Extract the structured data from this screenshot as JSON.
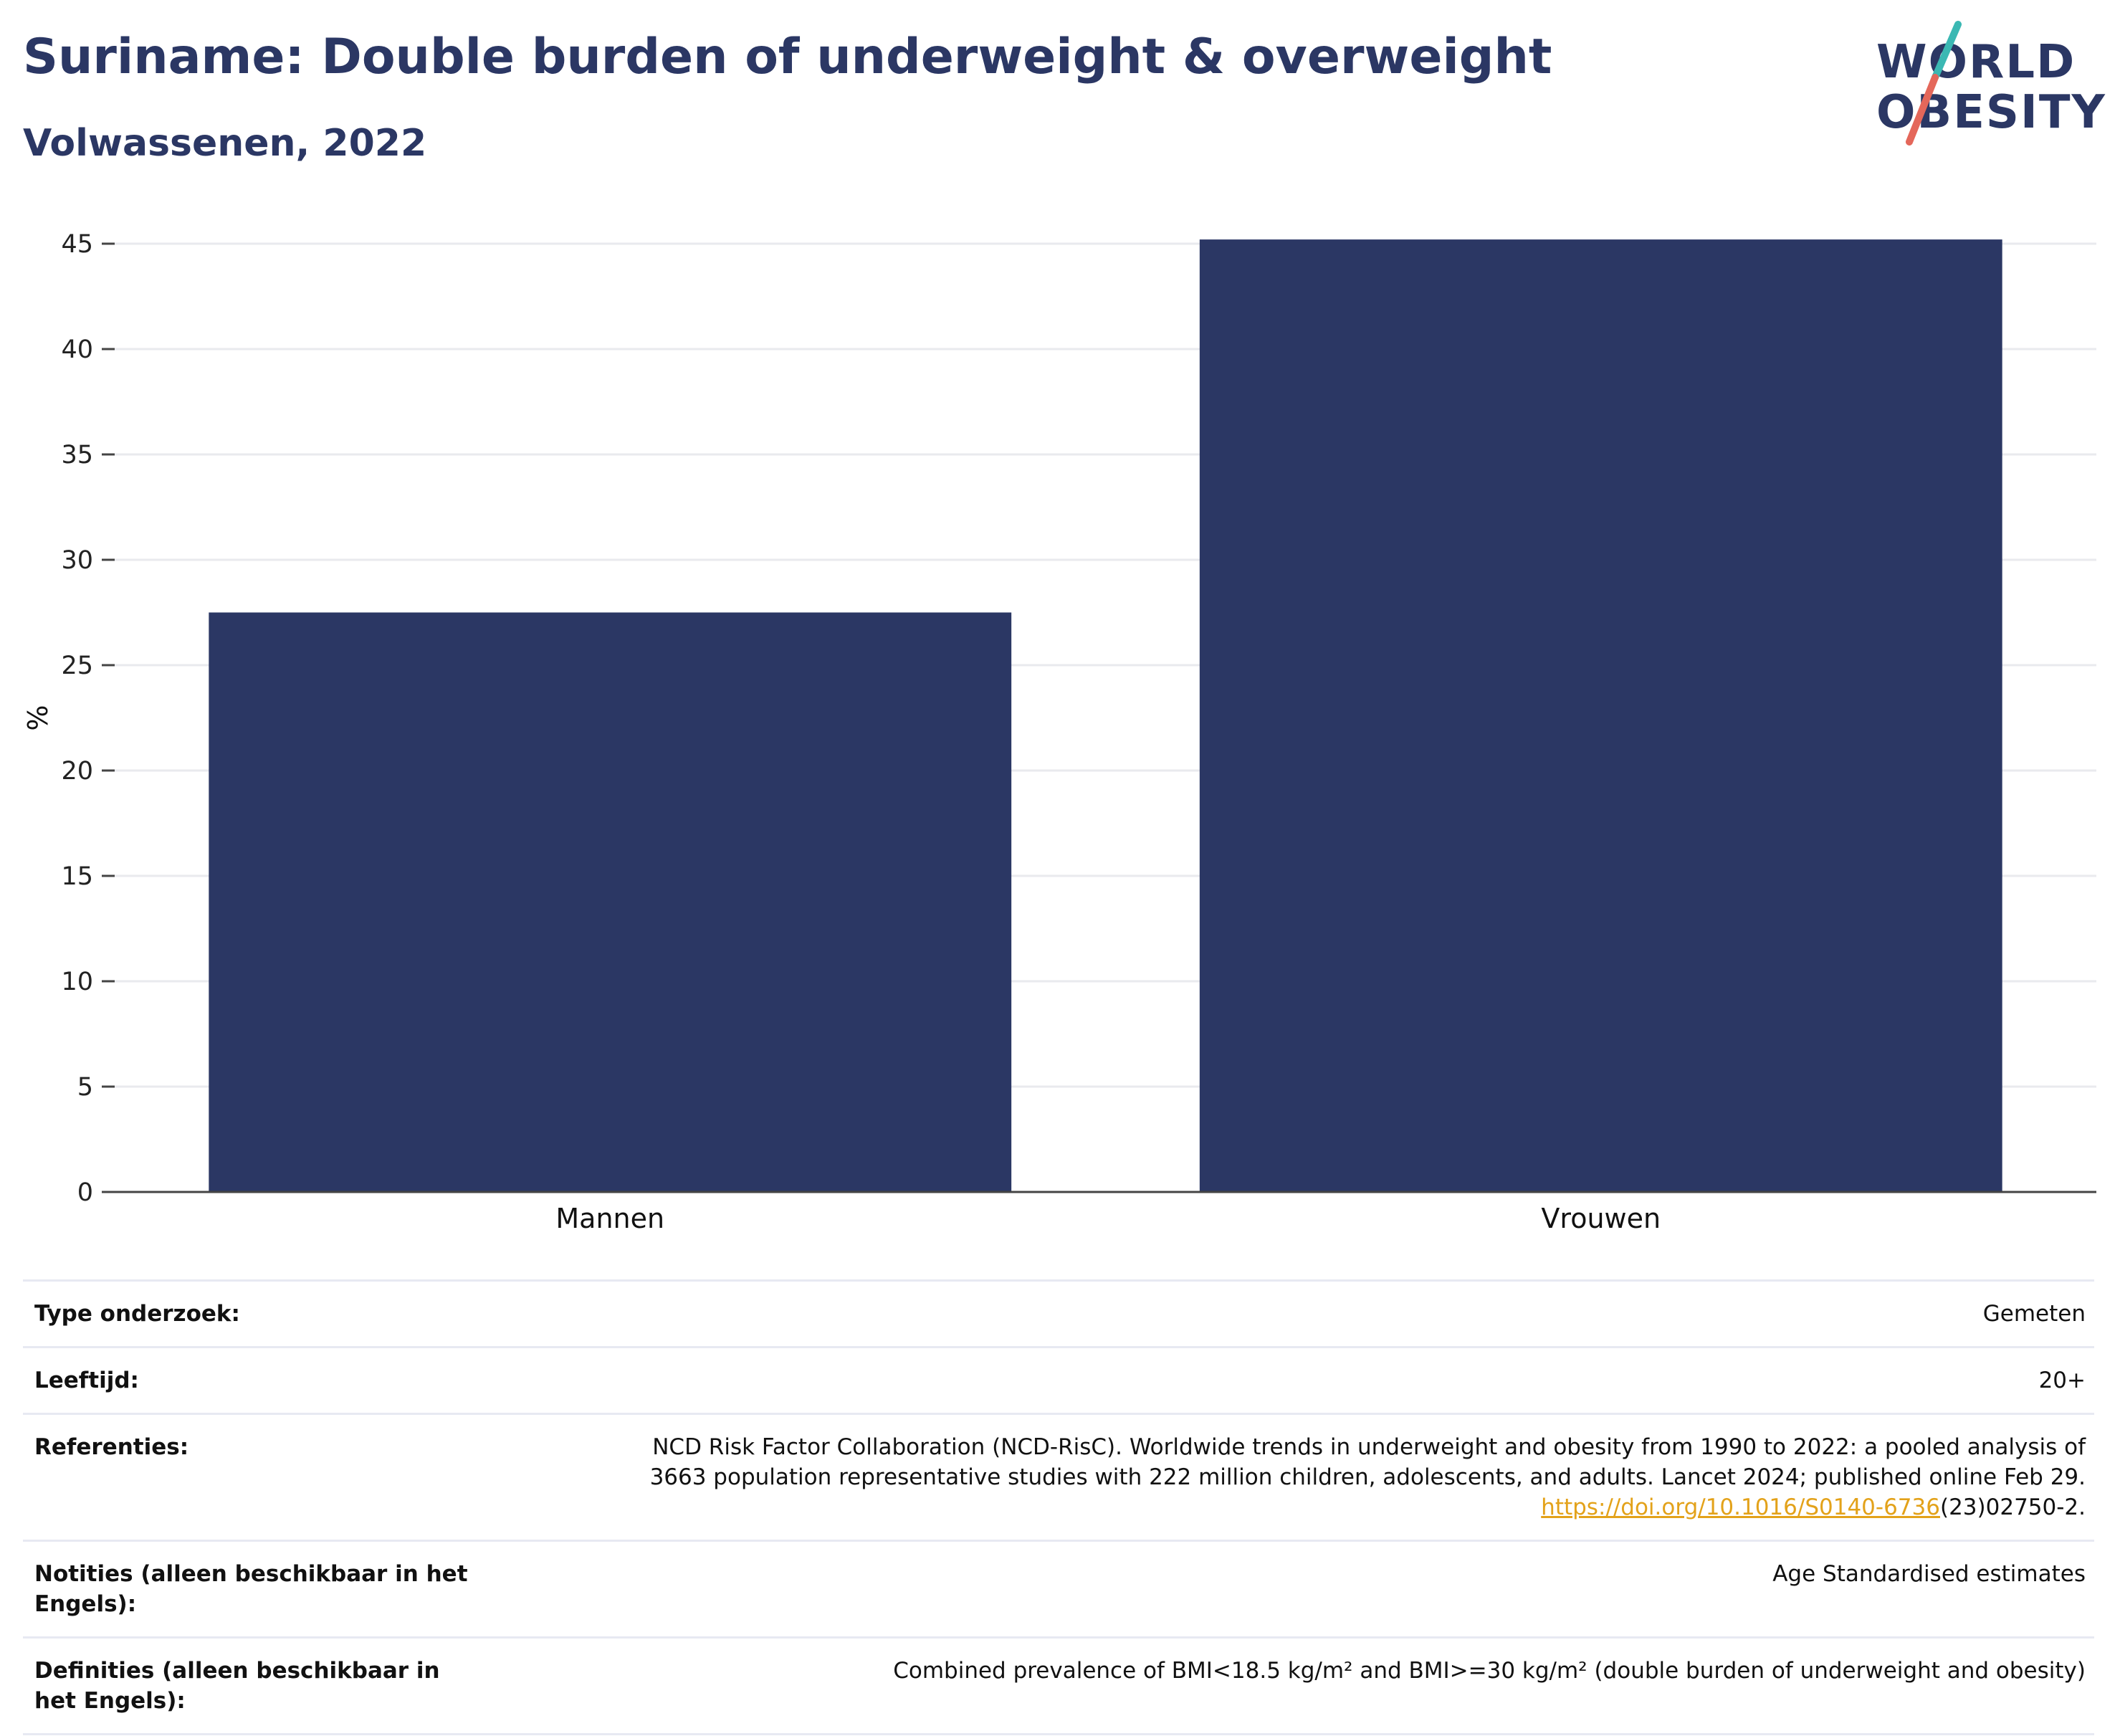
{
  "header": {
    "title": "Suriname: Double burden of underweight & overweight",
    "subtitle": "Volwassenen, 2022"
  },
  "logo": {
    "line1": "WORLD",
    "line2": "OBESITY",
    "colors": {
      "text": "#2b3764",
      "slash_top": "#3bb8b3",
      "slash_bottom": "#e4675a"
    }
  },
  "colors": {
    "bar": "#2b3764",
    "grid": "#e9eaee",
    "axis": "#444444",
    "link": "#e3a21a"
  },
  "chart_data": {
    "type": "bar",
    "categories": [
      "Mannen",
      "Vrouwen"
    ],
    "values": [
      27.5,
      45.2
    ],
    "ylabel": "%",
    "ylim": [
      0,
      45
    ],
    "yticks": [
      0,
      5,
      10,
      15,
      20,
      25,
      30,
      35,
      40,
      45
    ],
    "grid": true,
    "legend": "none"
  },
  "meta": [
    {
      "key": "Type onderzoek:",
      "value": "Gemeten"
    },
    {
      "key": "Leeftijd:",
      "value": "20+"
    },
    {
      "key": "Referenties:",
      "value_line1": "NCD Risk Factor Collaboration (NCD-RisC). Worldwide trends in underweight and obesity from 1990 to 2022: a pooled analysis of",
      "value_line2": "3663 population representative studies with 222 million children, adolescents, and adults. Lancet 2024; published online Feb 29.",
      "link": "https://doi.org/10.1016/S0140-6736",
      "link_suffix": "(23)02750-2."
    },
    {
      "key": "Notities (alleen beschikbaar in het Engels):",
      "value": "Age Standardised estimates"
    },
    {
      "key": "Definities (alleen beschikbaar in het Engels):",
      "value": "Combined prevalence of BMI<18.5 kg/m² and BMI>=30 kg/m² (double burden of underweight and obesity)"
    }
  ]
}
